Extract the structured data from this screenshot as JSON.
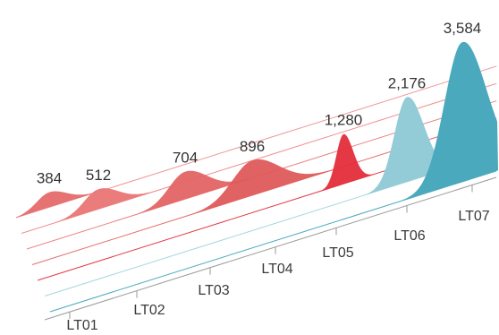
{
  "chart_data": {
    "type": "area",
    "title": "",
    "xlabel": "",
    "ylabel": "",
    "grid": false,
    "categories": [
      "LT01",
      "LT02",
      "LT03",
      "LT04",
      "LT05",
      "LT06",
      "LT07"
    ],
    "values": [
      384,
      512,
      704,
      896,
      1280,
      2176,
      3584
    ],
    "value_labels": [
      "384",
      "512",
      "704",
      "896",
      "1,280",
      "2,176",
      "3,584"
    ],
    "colors": [
      "#e56a6a",
      "#ea7575",
      "#e46464",
      "#df5a5a",
      "#e42d3b",
      "#93ccd6",
      "#4aa9bd"
    ]
  }
}
